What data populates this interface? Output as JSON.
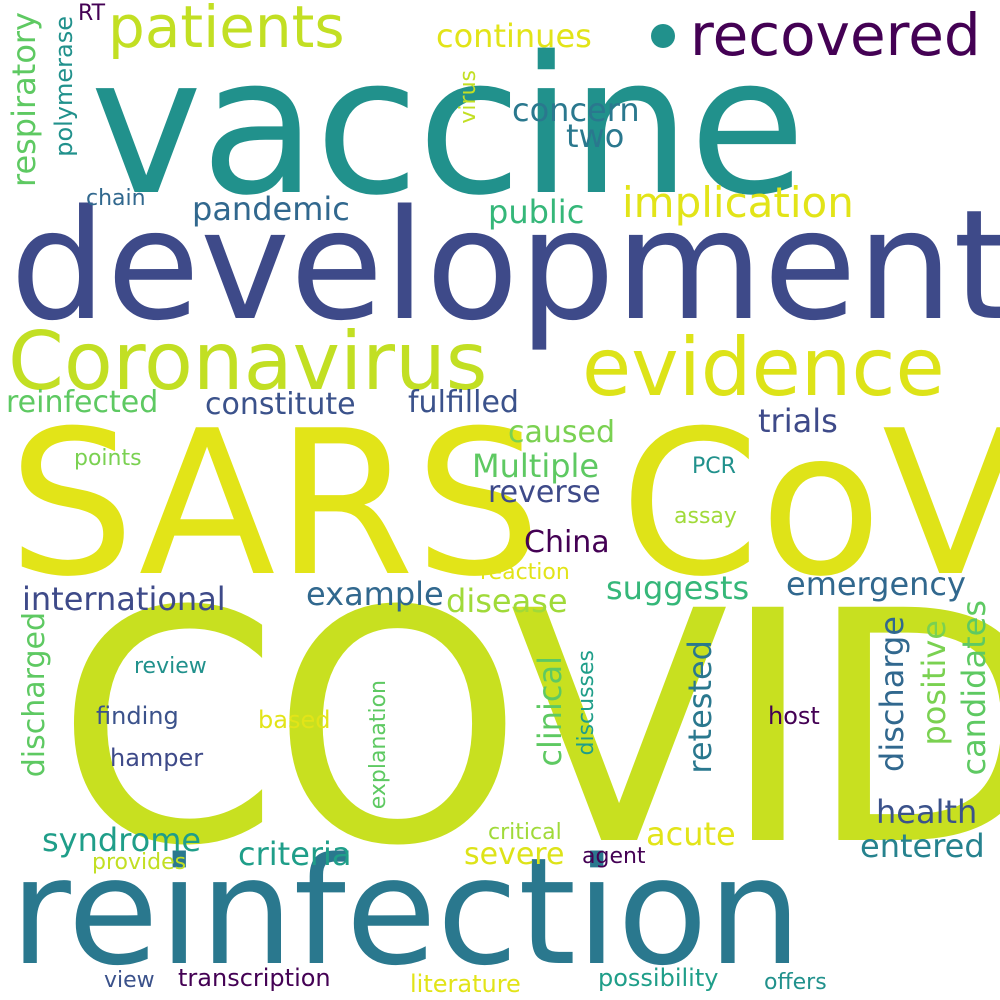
{
  "palette": {
    "deep_purple": "#440154",
    "indigo": "#3e4a89",
    "blue": "#31688e",
    "teal": "#26828e",
    "green_teal": "#1f9e89",
    "green": "#35b779",
    "light_green": "#6ece58",
    "lime": "#b5de2b",
    "yellow_green": "#c8e020",
    "yellow": "#e2e418"
  },
  "words": [
    {
      "text": "COVID",
      "color": "#c8e020"
    },
    {
      "text": "SARS",
      "color": "#e2e418"
    },
    {
      "text": "CoV",
      "color": "#dfe318"
    },
    {
      "text": "vaccine",
      "color": "#21918c"
    },
    {
      "text": "development",
      "color": "#3e4a89"
    },
    {
      "text": "reinfection",
      "color": "#2a788e"
    },
    {
      "text": "Coronavirus",
      "color": "#c2df23"
    },
    {
      "text": "evidence",
      "color": "#dde318"
    },
    {
      "text": "patients",
      "color": "#c2df23"
    },
    {
      "text": "recovered",
      "color": "#440154"
    },
    {
      "text": "implication",
      "color": "#e2e418"
    },
    {
      "text": "continues",
      "color": "#e2e418"
    },
    {
      "text": "concern",
      "color": "#2a788e"
    },
    {
      "text": "two",
      "color": "#2a788e"
    },
    {
      "text": "public",
      "color": "#35b779"
    },
    {
      "text": "pandemic",
      "color": "#31688e"
    },
    {
      "text": "chain",
      "color": "#31688e"
    },
    {
      "text": "respiratory",
      "color": "#5ec962"
    },
    {
      "text": "polymerase",
      "color": "#21918c"
    },
    {
      "text": "RT",
      "color": "#440154"
    },
    {
      "text": "virus",
      "color": "#c2df23"
    },
    {
      "text": "reinfected",
      "color": "#5ec962"
    },
    {
      "text": "constitute",
      "color": "#3b528b"
    },
    {
      "text": "fulfilled",
      "color": "#3b528b"
    },
    {
      "text": "trials",
      "color": "#3e4a89"
    },
    {
      "text": "caused",
      "color": "#7ad151"
    },
    {
      "text": "Multiple",
      "color": "#5ec962"
    },
    {
      "text": "points",
      "color": "#7ad151"
    },
    {
      "text": "PCR",
      "color": "#21918c"
    },
    {
      "text": "reverse",
      "color": "#3e4a89"
    },
    {
      "text": "assay",
      "color": "#a0da39"
    },
    {
      "text": "China",
      "color": "#440154"
    },
    {
      "text": "reaction",
      "color": "#e2e418"
    },
    {
      "text": "international",
      "color": "#3e4a89"
    },
    {
      "text": "example",
      "color": "#31688e"
    },
    {
      "text": "disease",
      "color": "#a0da39"
    },
    {
      "text": "suggests",
      "color": "#35b779"
    },
    {
      "text": "emergency",
      "color": "#31688e"
    },
    {
      "text": "discharged",
      "color": "#5ec962"
    },
    {
      "text": "review",
      "color": "#21918c"
    },
    {
      "text": "finding",
      "color": "#3b528b"
    },
    {
      "text": "based",
      "color": "#e2e418"
    },
    {
      "text": "hamper",
      "color": "#3e4a89"
    },
    {
      "text": "explanation",
      "color": "#5ec962"
    },
    {
      "text": "discusses",
      "color": "#1f9e89"
    },
    {
      "text": "clinical",
      "color": "#5ec962"
    },
    {
      "text": "retested",
      "color": "#2a788e"
    },
    {
      "text": "discharge",
      "color": "#31688e"
    },
    {
      "text": "positive",
      "color": "#7ad151"
    },
    {
      "text": "candidates",
      "color": "#5ec962"
    },
    {
      "text": "host",
      "color": "#440154"
    },
    {
      "text": "health",
      "color": "#3b528b"
    },
    {
      "text": "acute",
      "color": "#e2e418"
    },
    {
      "text": "syndrome",
      "color": "#1f9e89"
    },
    {
      "text": "criteria",
      "color": "#1f9e89"
    },
    {
      "text": "critical",
      "color": "#a0da39"
    },
    {
      "text": "severe",
      "color": "#dde318"
    },
    {
      "text": "agent",
      "color": "#440154"
    },
    {
      "text": "entered",
      "color": "#26828e"
    },
    {
      "text": "provides",
      "color": "#c2df23"
    },
    {
      "text": "view",
      "color": "#3b528b"
    },
    {
      "text": "transcription",
      "color": "#440154"
    },
    {
      "text": "literature",
      "color": "#e2e418"
    },
    {
      "text": "possibility",
      "color": "#1f9e89"
    },
    {
      "text": "offers",
      "color": "#21918c"
    }
  ]
}
